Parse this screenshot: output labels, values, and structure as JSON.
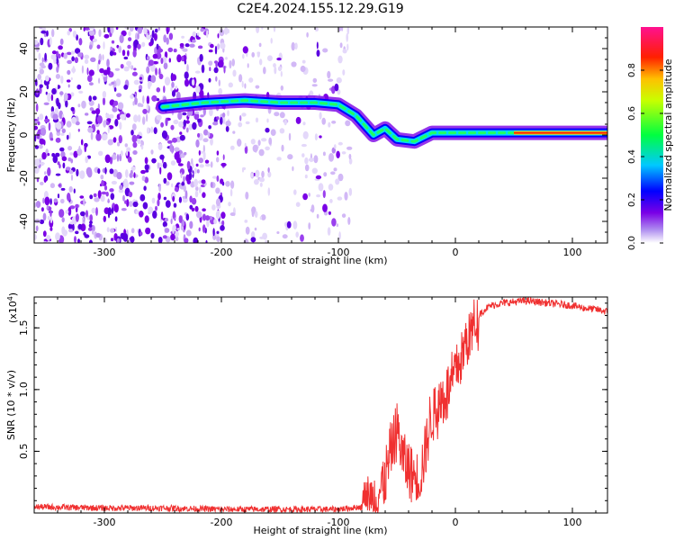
{
  "title": "C2E4.2024.155.12.29.G19",
  "chart_data": [
    {
      "type": "heatmap",
      "xlabel": "Height of straight line (km)",
      "ylabel": "Frequency (Hz)",
      "xlim": [
        -360,
        130
      ],
      "ylim": [
        -50,
        50
      ],
      "xticks": [
        -300,
        -200,
        -100,
        0,
        100
      ],
      "yticks": [
        -40,
        -20,
        0,
        20,
        40
      ],
      "colorbar": {
        "label": "Normalized spectral amplitude",
        "range": [
          0,
          1
        ],
        "ticks": [
          0.0,
          0.2,
          0.4,
          0.6,
          0.8
        ],
        "colormap": [
          "#ffffff",
          "#7a00e6",
          "#0000ff",
          "#00d0ff",
          "#00ff40",
          "#ffff00",
          "#ff2000",
          "#ff00a0"
        ]
      },
      "signal_ridge": [
        {
          "x": -250,
          "y": 13
        },
        {
          "x": -215,
          "y": 15
        },
        {
          "x": -180,
          "y": 16
        },
        {
          "x": -150,
          "y": 15
        },
        {
          "x": -120,
          "y": 15
        },
        {
          "x": -100,
          "y": 14
        },
        {
          "x": -85,
          "y": 9
        },
        {
          "x": -70,
          "y": 0
        },
        {
          "x": -60,
          "y": 3
        },
        {
          "x": -50,
          "y": -2
        },
        {
          "x": -35,
          "y": -3
        },
        {
          "x": -20,
          "y": 1
        },
        {
          "x": 0,
          "y": 1
        },
        {
          "x": 50,
          "y": 1
        },
        {
          "x": 100,
          "y": 1
        },
        {
          "x": 130,
          "y": 1
        }
      ]
    },
    {
      "type": "line",
      "xlabel": "Height of straight line (km)",
      "ylabel": "SNR (10 * v/v)",
      "yscale_label": "(x10",
      "yscale_exp": "4",
      "yscale_close": ")",
      "xlim": [
        -360,
        130
      ],
      "ylim": [
        0,
        1.75
      ],
      "xticks": [
        -300,
        -200,
        -100,
        0,
        100
      ],
      "yticks": [
        0.5,
        1.0,
        1.5
      ],
      "ytick_labels": [
        "0.5",
        "1.0",
        "1.5"
      ],
      "line_color": "#f03030",
      "series": [
        {
          "x": [
            -360,
            -300,
            -250,
            -200,
            -150,
            -100,
            -80,
            -70,
            -60,
            -55,
            -50,
            -45,
            -40,
            -35,
            -30,
            -25,
            -20,
            -15,
            -10,
            -5,
            0,
            5,
            10,
            15,
            20,
            25,
            30,
            40,
            50,
            60,
            70,
            80,
            90,
            100,
            110,
            120,
            130
          ],
          "y": [
            0.05,
            0.04,
            0.04,
            0.03,
            0.03,
            0.03,
            0.05,
            0.1,
            0.25,
            0.5,
            0.7,
            0.45,
            0.35,
            0.3,
            0.3,
            0.55,
            0.8,
            0.85,
            0.95,
            1.0,
            1.15,
            1.25,
            1.4,
            1.5,
            1.6,
            1.65,
            1.68,
            1.7,
            1.71,
            1.72,
            1.71,
            1.7,
            1.69,
            1.68,
            1.66,
            1.65,
            1.63
          ]
        }
      ]
    }
  ]
}
